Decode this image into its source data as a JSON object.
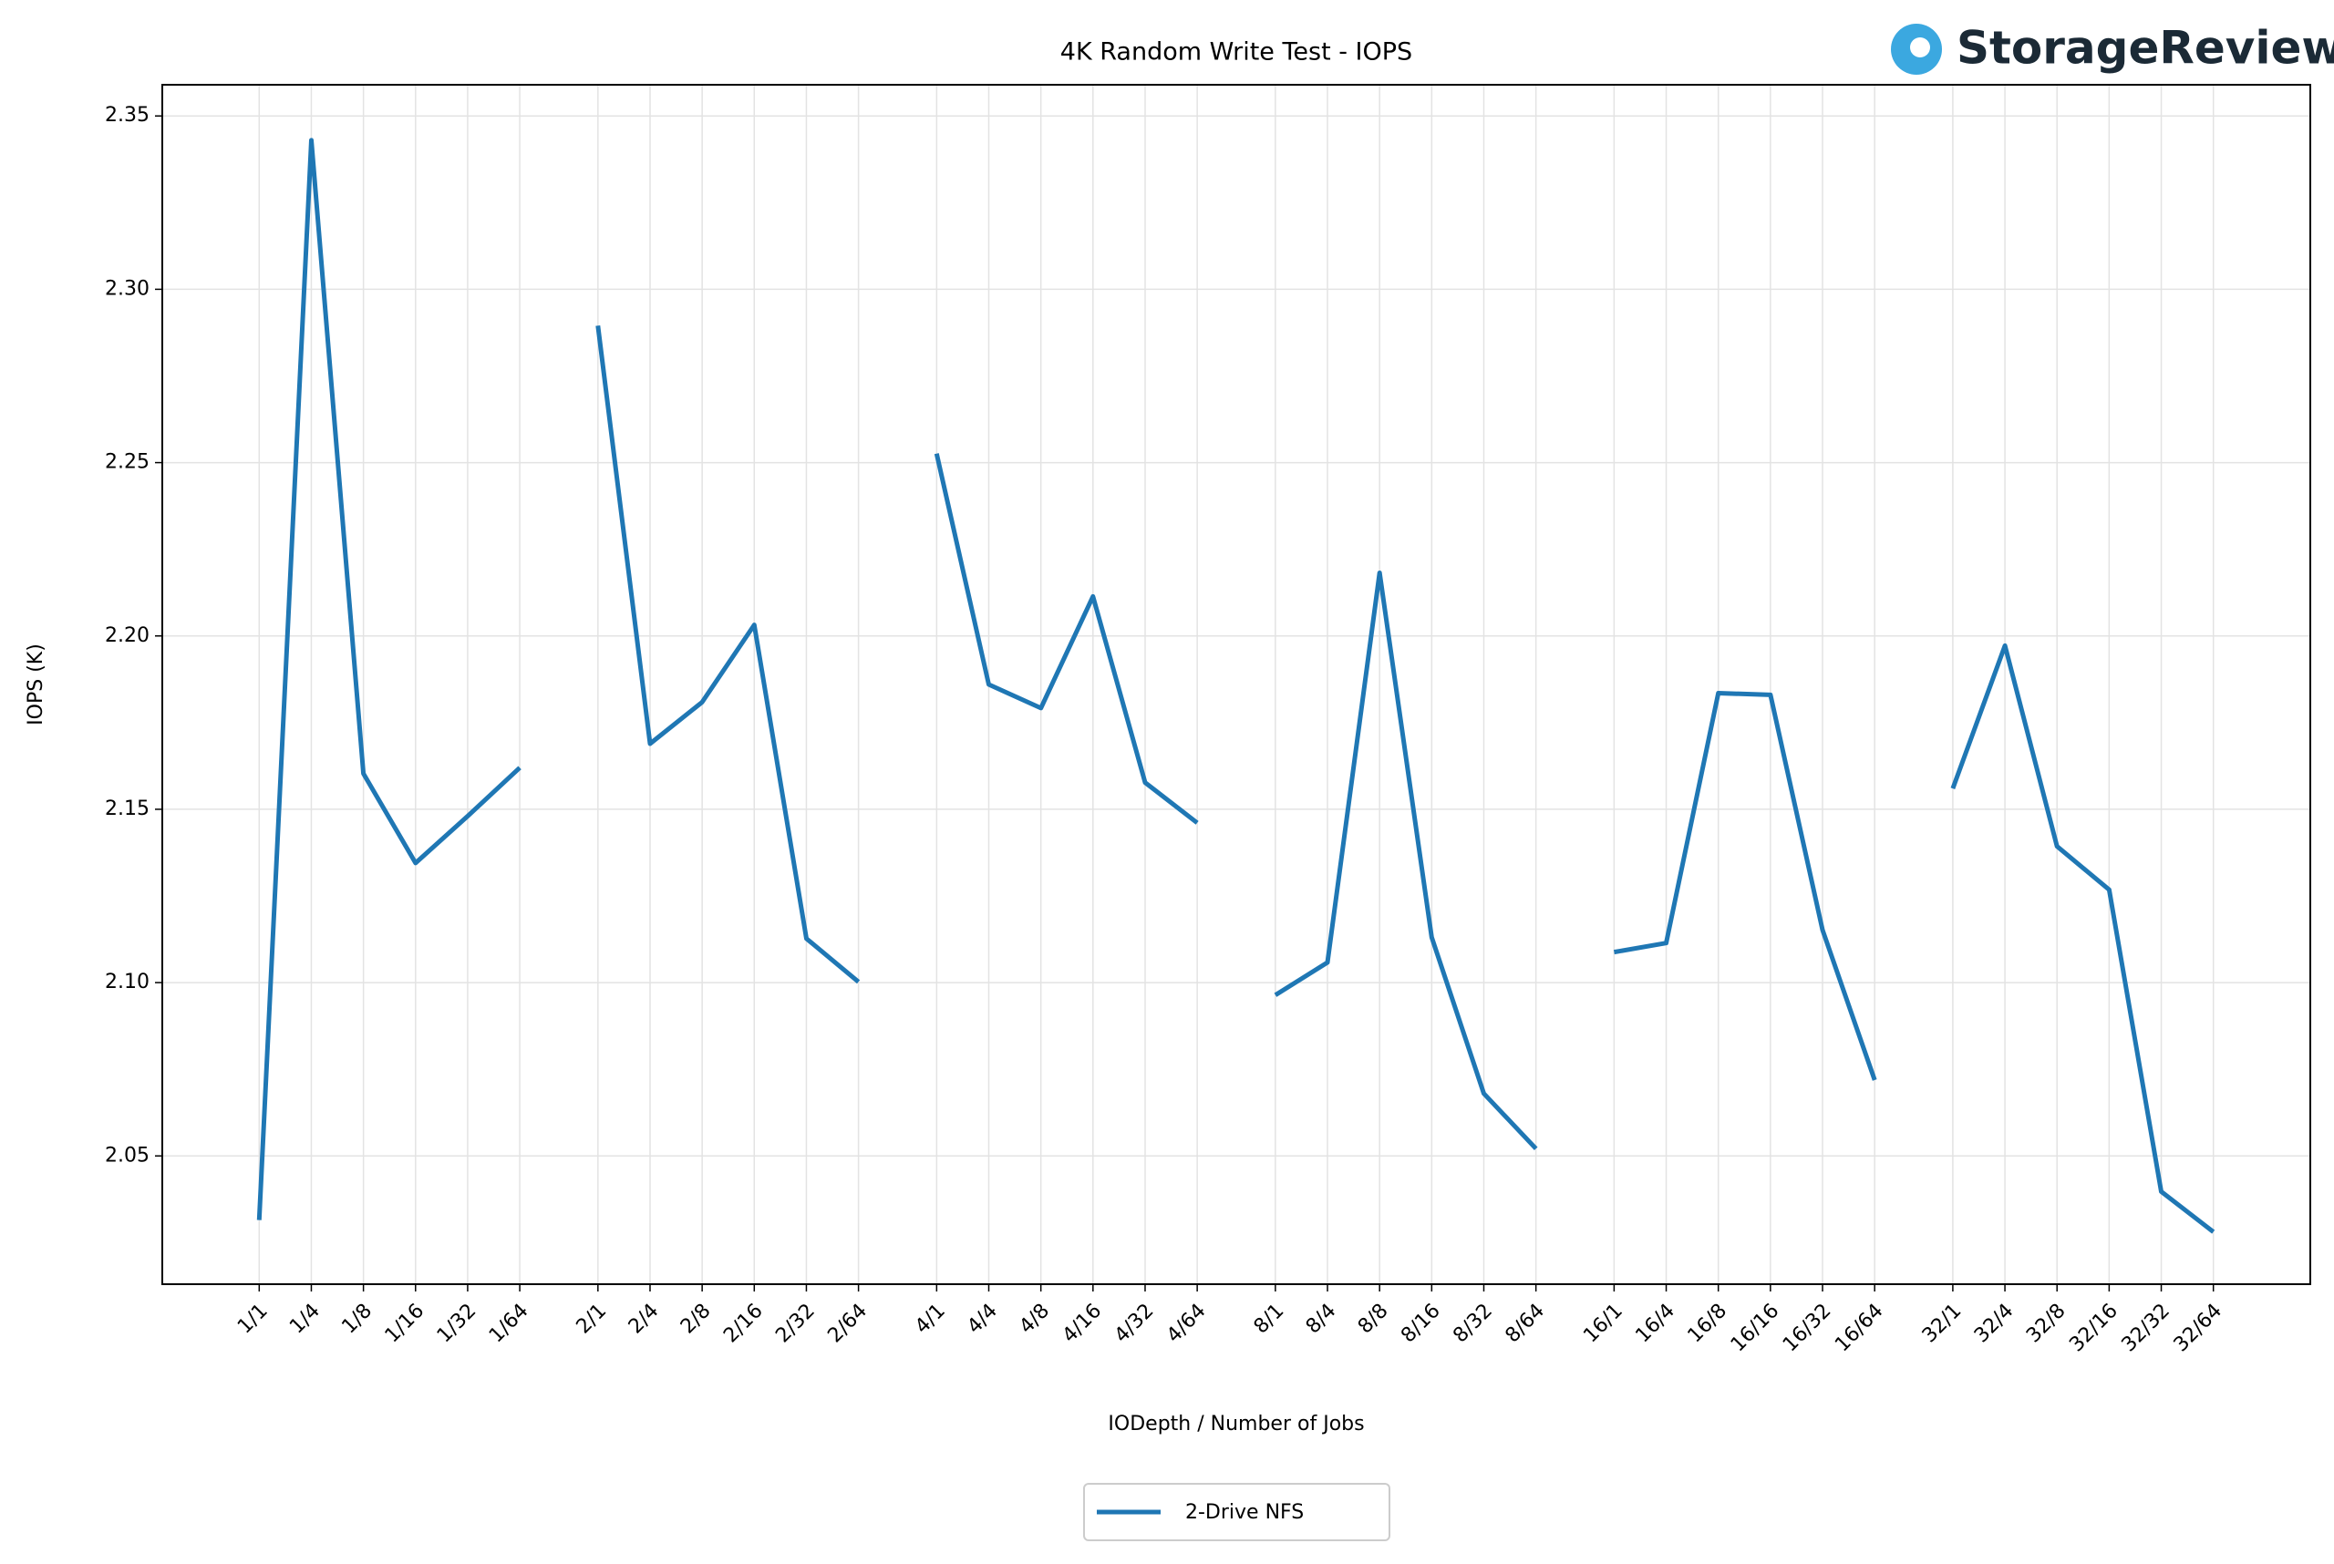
{
  "chart_data": {
    "type": "line",
    "title": "4K Random Write Test - IOPS",
    "watermark": "StorageReview",
    "x_label": "IODepth / Number of Jobs",
    "y_label": "IOPS (K)",
    "categories": [
      "1/1",
      "1/4",
      "1/8",
      "1/16",
      "1/32",
      "1/64",
      null,
      "2/1",
      "2/4",
      "2/8",
      "2/16",
      "2/32",
      "2/64",
      null,
      "4/1",
      "4/4",
      "4/8",
      "4/16",
      "4/32",
      "4/64",
      null,
      "8/1",
      "8/4",
      "8/8",
      "8/16",
      "8/32",
      "8/64",
      null,
      "16/1",
      "16/4",
      "16/8",
      "16/16",
      "16/32",
      "16/64",
      null,
      "32/1",
      "32/4",
      "32/8",
      "32/16",
      "32/32",
      "32/64"
    ],
    "series": [
      {
        "name": "2-Drive NFS",
        "color": "#1f77b4",
        "values": [
          2.0315,
          2.343,
          2.1603,
          2.1345,
          2.148,
          2.162,
          null,
          2.2895,
          2.1689,
          2.1809,
          2.2032,
          2.1127,
          2.1002,
          null,
          2.2526,
          2.186,
          2.1792,
          2.2114,
          2.1577,
          2.1461,
          null,
          2.0964,
          2.1058,
          2.2182,
          2.1131,
          2.068,
          2.0521,
          null,
          2.1088,
          2.1114,
          2.1835,
          2.183,
          2.1152,
          2.0719,
          null,
          2.156,
          2.1972,
          2.1393,
          2.1268,
          2.0397,
          2.0281
        ]
      }
    ],
    "ylim": [
      2.013,
      2.359
    ],
    "yticks": [
      2.05,
      {
        "value": 2.1,
        "label": "2.10"
      },
      2.15,
      {
        "value": 2.2,
        "label": "2.20"
      },
      2.25,
      {
        "value": 2.3,
        "label": "2.30"
      },
      2.35
    ],
    "grid": true,
    "legend": "bottom"
  }
}
